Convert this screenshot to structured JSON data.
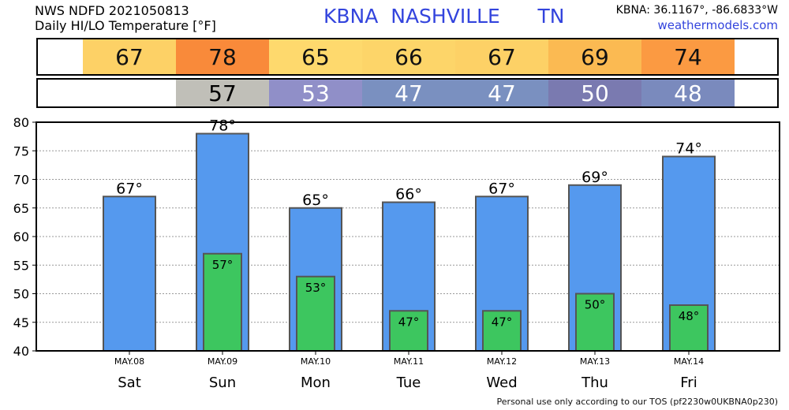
{
  "header": {
    "line1": "NWS NDFD 2021050813",
    "line2": "Daily HI/LO Temperature [°F]",
    "station_title": "KBNA  NASHVILLE      TN",
    "coords": "KBNA: 36.1167°, -86.6833°W",
    "site": "weathermodels.com"
  },
  "hi_strip": [
    {
      "value": "67",
      "color": "#fdd166"
    },
    {
      "value": "78",
      "color": "#f98a3a"
    },
    {
      "value": "65",
      "color": "#fed96d"
    },
    {
      "value": "66",
      "color": "#fdd569"
    },
    {
      "value": "67",
      "color": "#fdd166"
    },
    {
      "value": "69",
      "color": "#fbba52"
    },
    {
      "value": "74",
      "color": "#fb9a42"
    }
  ],
  "lo_strip": [
    {
      "value": "",
      "color": "#ffffff",
      "text_color": "#000000"
    },
    {
      "value": "57",
      "color": "#c0bfb8",
      "text_color": "#000000"
    },
    {
      "value": "53",
      "color": "#908fc8",
      "text_color": "#ffffff"
    },
    {
      "value": "47",
      "color": "#7a90c0",
      "text_color": "#ffffff"
    },
    {
      "value": "47",
      "color": "#7a90c0",
      "text_color": "#ffffff"
    },
    {
      "value": "50",
      "color": "#7a7ab0",
      "text_color": "#ffffff"
    },
    {
      "value": "48",
      "color": "#7a8abd",
      "text_color": "#ffffff"
    }
  ],
  "chart_data": {
    "type": "bar",
    "dates": [
      "MAY.08",
      "MAY.09",
      "MAY.10",
      "MAY.11",
      "MAY.12",
      "MAY.13",
      "MAY.14"
    ],
    "categories": [
      "Sat",
      "Sun",
      "Mon",
      "Tue",
      "Wed",
      "Thu",
      "Fri"
    ],
    "series": [
      {
        "values": [
          67,
          78,
          65,
          66,
          67,
          69,
          74
        ],
        "color": "#5599ee",
        "labels": [
          "67°",
          "78°",
          "65°",
          "66°",
          "67°",
          "69°",
          "74°"
        ]
      },
      {
        "values": [
          null,
          57,
          53,
          47,
          47,
          50,
          48
        ],
        "color": "#3dc65f",
        "labels": [
          "",
          "57°",
          "53°",
          "47°",
          "47°",
          "50°",
          "48°"
        ]
      }
    ],
    "ylim": [
      40,
      80
    ],
    "yticks": [
      "40",
      "45",
      "50",
      "55",
      "60",
      "65",
      "70",
      "75",
      "80"
    ],
    "grid": true
  },
  "footer": "Personal use only according to our TOS (pf2230w0UKBNA0p230)"
}
